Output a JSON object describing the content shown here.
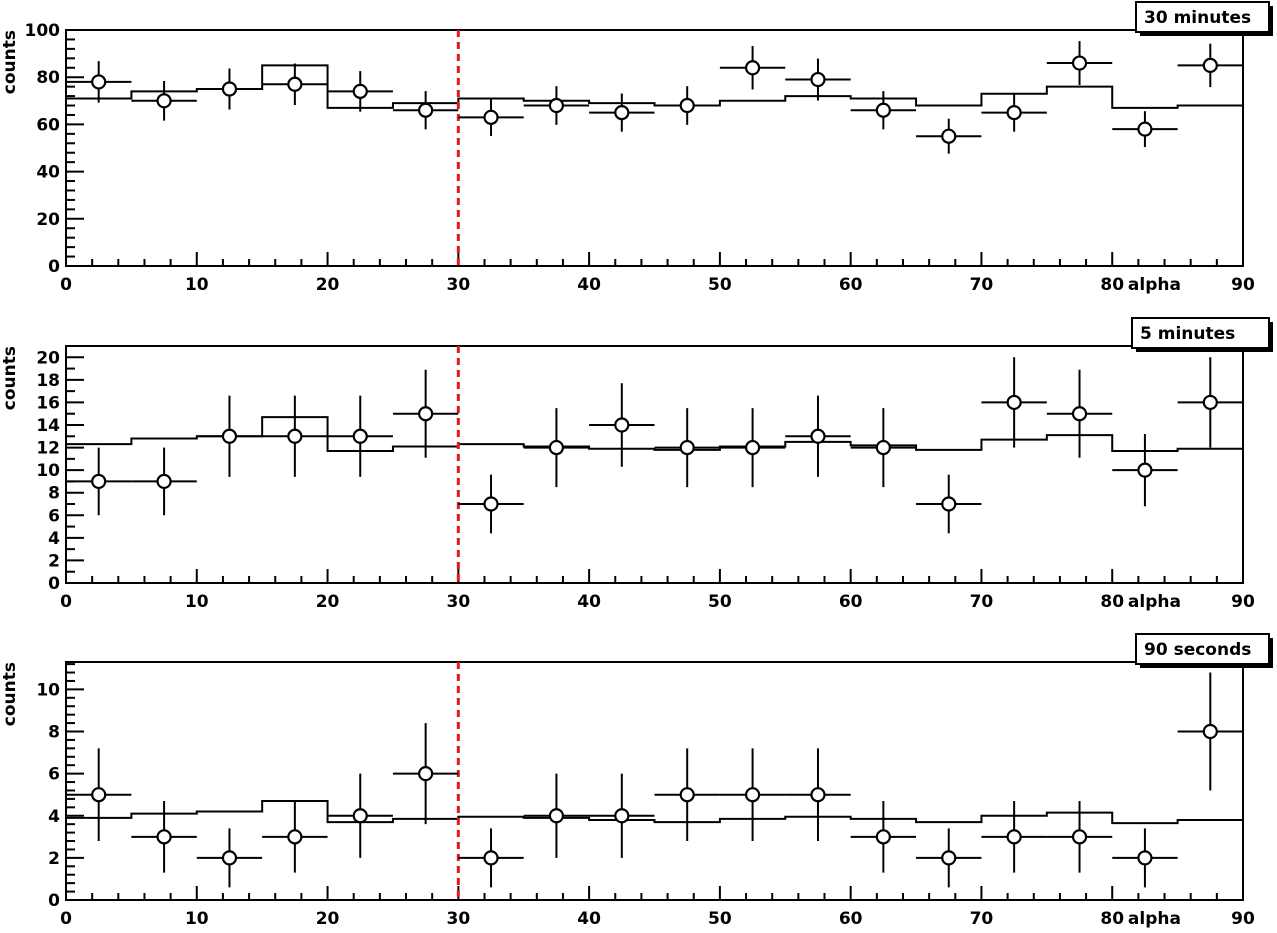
{
  "chart_data": [
    {
      "type": "scatter",
      "title": "30 minutes",
      "xlabel": "alpha",
      "ylabel": "counts",
      "xlim": [
        0,
        90
      ],
      "ylim": [
        0,
        100
      ],
      "xticks": [
        0,
        10,
        20,
        30,
        40,
        50,
        60,
        70,
        80,
        90
      ],
      "yticks": [
        0,
        20,
        40,
        60,
        80,
        100
      ],
      "cut_line_x": 30,
      "cut_line_color": "#e8191b",
      "series": [
        {
          "kind": "points_with_errors",
          "x": [
            2.5,
            7.5,
            12.5,
            17.5,
            22.5,
            27.5,
            32.5,
            37.5,
            42.5,
            47.5,
            52.5,
            57.5,
            62.5,
            67.5,
            72.5,
            77.5,
            82.5,
            87.5
          ],
          "y": [
            78,
            70,
            75,
            77,
            74,
            66,
            63,
            68,
            65,
            68,
            84,
            79,
            66,
            55,
            65,
            86,
            58,
            85
          ],
          "xerr": 2.5,
          "yerr": [
            8.8,
            8.4,
            8.7,
            8.8,
            8.6,
            8.1,
            7.9,
            8.2,
            8.1,
            8.2,
            9.2,
            8.9,
            8.1,
            7.4,
            8.1,
            9.3,
            7.6,
            9.2
          ]
        },
        {
          "kind": "step_histogram",
          "edges": [
            0,
            5,
            10,
            15,
            20,
            25,
            30,
            35,
            40,
            45,
            50,
            55,
            60,
            65,
            70,
            75,
            80,
            85,
            90
          ],
          "values": [
            71,
            74,
            75,
            85,
            67,
            69,
            71,
            70,
            69,
            68,
            70,
            72,
            71,
            68,
            73,
            76,
            67,
            68
          ]
        }
      ]
    },
    {
      "type": "scatter",
      "title": "5 minutes",
      "xlabel": "alpha",
      "ylabel": "counts",
      "xlim": [
        0,
        90
      ],
      "ylim": [
        0,
        21
      ],
      "xticks": [
        0,
        10,
        20,
        30,
        40,
        50,
        60,
        70,
        80,
        90
      ],
      "yticks": [
        0,
        2,
        4,
        6,
        8,
        10,
        12,
        14,
        16,
        18,
        20
      ],
      "cut_line_x": 30,
      "cut_line_color": "#e8191b",
      "series": [
        {
          "kind": "points_with_errors",
          "x": [
            2.5,
            7.5,
            12.5,
            17.5,
            22.5,
            27.5,
            32.5,
            37.5,
            42.5,
            47.5,
            52.5,
            57.5,
            62.5,
            67.5,
            72.5,
            77.5,
            82.5,
            87.5
          ],
          "y": [
            9,
            9,
            13,
            13,
            13,
            15,
            7,
            12,
            14,
            12,
            12,
            13,
            12,
            7,
            16,
            15,
            10,
            16
          ],
          "xerr": 2.5,
          "yerr": [
            3,
            3,
            3.6,
            3.6,
            3.6,
            3.9,
            2.6,
            3.5,
            3.7,
            3.5,
            3.5,
            3.6,
            3.5,
            2.6,
            4,
            3.9,
            3.2,
            4
          ]
        },
        {
          "kind": "step_histogram",
          "edges": [
            0,
            5,
            10,
            15,
            20,
            25,
            30,
            35,
            40,
            45,
            50,
            55,
            60,
            65,
            70,
            75,
            80,
            85,
            90
          ],
          "values": [
            12.3,
            12.8,
            13.0,
            14.7,
            11.7,
            12.1,
            12.3,
            12.1,
            11.9,
            11.8,
            12.1,
            12.5,
            12.2,
            11.8,
            12.7,
            13.1,
            11.7,
            11.9
          ]
        }
      ]
    },
    {
      "type": "scatter",
      "title": "90 seconds",
      "xlabel": "alpha",
      "ylabel": "counts",
      "xlim": [
        0,
        90
      ],
      "ylim": [
        0,
        11.3
      ],
      "xticks": [
        0,
        10,
        20,
        30,
        40,
        50,
        60,
        70,
        80,
        90
      ],
      "yticks": [
        0,
        2,
        4,
        6,
        8,
        10
      ],
      "cut_line_x": 30,
      "cut_line_color": "#e8191b",
      "series": [
        {
          "kind": "points_with_errors",
          "x": [
            2.5,
            7.5,
            12.5,
            17.5,
            22.5,
            27.5,
            32.5,
            37.5,
            42.5,
            47.5,
            52.5,
            57.5,
            62.5,
            67.5,
            72.5,
            77.5,
            82.5,
            87.5
          ],
          "y": [
            5,
            3,
            2,
            3,
            4,
            6,
            2,
            4,
            4,
            5,
            5,
            5,
            3,
            2,
            3,
            3,
            2,
            8
          ],
          "xerr": 2.5,
          "yerr": [
            2.2,
            1.7,
            1.4,
            1.7,
            2,
            2.4,
            1.4,
            2,
            2,
            2.2,
            2.2,
            2.2,
            1.7,
            1.4,
            1.7,
            1.7,
            1.4,
            2.8
          ]
        },
        {
          "kind": "step_histogram",
          "edges": [
            0,
            5,
            10,
            15,
            20,
            25,
            30,
            35,
            40,
            45,
            50,
            55,
            60,
            65,
            70,
            75,
            80,
            85,
            90
          ],
          "values": [
            3.9,
            4.1,
            4.2,
            4.7,
            3.7,
            3.85,
            3.95,
            3.9,
            3.8,
            3.7,
            3.85,
            3.95,
            3.85,
            3.7,
            4.0,
            4.15,
            3.65,
            3.8
          ]
        }
      ]
    }
  ]
}
